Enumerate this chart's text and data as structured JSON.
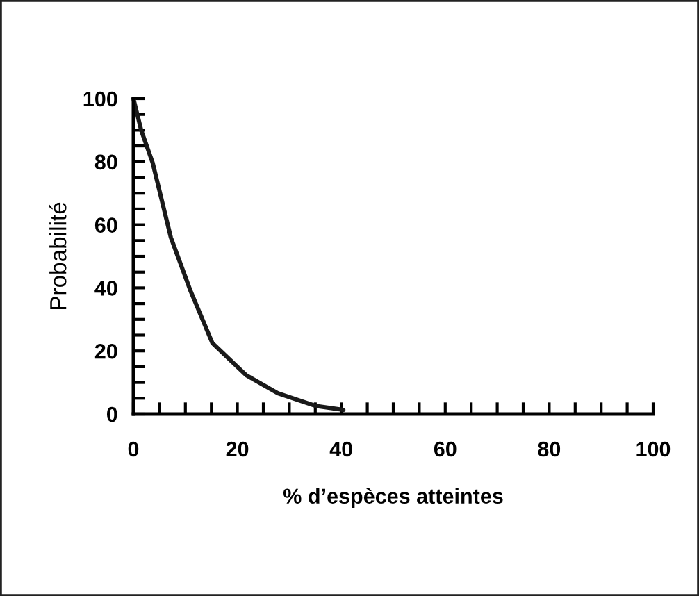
{
  "chart_data": {
    "type": "line",
    "xlabel": "% d’espèces atteintes",
    "ylabel": "Probabilité",
    "x": [
      0,
      1.5,
      3.7,
      7.2,
      11,
      15.2,
      21.7,
      27.8,
      35,
      40.4
    ],
    "series": [
      {
        "color": "#1a1a1a",
        "values": [
          100,
          90,
          79.7,
          56,
          39,
          22.5,
          12.3,
          6.6,
          2.6,
          1.3
        ]
      }
    ],
    "xlim": [
      0,
      100
    ],
    "ylim": [
      0,
      100
    ],
    "xticks": [
      0,
      {
        "value": 5,
        "label": null
      },
      {
        "value": 10,
        "label": null
      },
      {
        "value": 15,
        "label": null
      },
      20,
      {
        "value": 25,
        "label": null
      },
      {
        "value": 30,
        "label": null
      },
      {
        "value": 35,
        "label": null
      },
      40,
      {
        "value": 45,
        "label": null
      },
      {
        "value": 50,
        "label": null
      },
      {
        "value": 55,
        "label": null
      },
      60,
      {
        "value": 65,
        "label": null
      },
      {
        "value": 70,
        "label": null
      },
      {
        "value": 75,
        "label": null
      },
      80,
      {
        "value": 85,
        "label": null
      },
      {
        "value": 90,
        "label": null
      },
      {
        "value": 95,
        "label": null
      },
      100
    ],
    "yticks": [
      0,
      {
        "value": 5,
        "label": null
      },
      {
        "value": 10,
        "label": null
      },
      {
        "value": 15,
        "label": null
      },
      20,
      {
        "value": 25,
        "label": null
      },
      {
        "value": 30,
        "label": null
      },
      {
        "value": 35,
        "label": null
      },
      40,
      {
        "value": 45,
        "label": null
      },
      {
        "value": 50,
        "label": null
      },
      {
        "value": 55,
        "label": null
      },
      60,
      {
        "value": 65,
        "label": null
      },
      {
        "value": 70,
        "label": null
      },
      {
        "value": 75,
        "label": null
      },
      80,
      {
        "value": 85,
        "label": null
      },
      {
        "value": 90,
        "label": null
      },
      {
        "value": 95,
        "label": null
      },
      100
    ],
    "grid": false,
    "legend": false,
    "marker": "none",
    "line_style": "solid"
  }
}
